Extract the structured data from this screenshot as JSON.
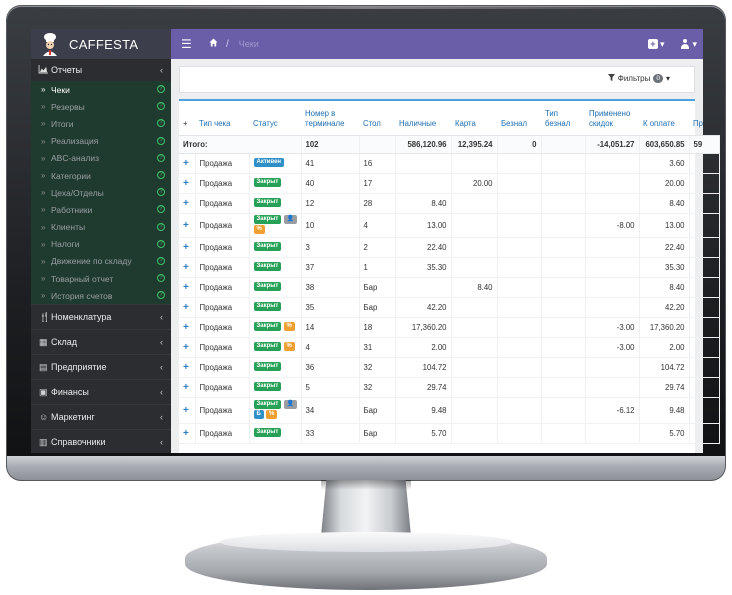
{
  "app": {
    "brand": "CAFFESTA",
    "breadcrumb_current": "Чеки"
  },
  "filters": {
    "label": "Фильтры",
    "count": "0"
  },
  "sidebar": {
    "section": "Отчеты",
    "items": [
      {
        "label": "Чеки",
        "active": true
      },
      {
        "label": "Резервы"
      },
      {
        "label": "Итоги"
      },
      {
        "label": "Реализация"
      },
      {
        "label": "ABC-анализ"
      },
      {
        "label": "Категории"
      },
      {
        "label": "Цеха/Отделы"
      },
      {
        "label": "Работники"
      },
      {
        "label": "Клиенты"
      },
      {
        "label": "Налоги"
      },
      {
        "label": "Движение по складу"
      },
      {
        "label": "Товарный отчет"
      },
      {
        "label": "История счетов"
      }
    ],
    "groups": [
      {
        "label": "Номенклатура"
      },
      {
        "label": "Склад"
      },
      {
        "label": "Предприятие"
      },
      {
        "label": "Финансы"
      },
      {
        "label": "Маркетинг"
      },
      {
        "label": "Справочники"
      }
    ]
  },
  "table": {
    "headers": [
      "+",
      "Тип чека",
      "Статус",
      "Номер в терминале",
      "Стол",
      "Наличные",
      "Карта",
      "Безнал",
      "Тип безнал",
      "Применено скидок",
      "К оплате",
      "Пр"
    ],
    "total": {
      "label": "Итого:",
      "number": "102",
      "cash": "586,120.96",
      "card": "12,395.24",
      "noncash": "0",
      "discount": "-14,051.27",
      "topay": "603,650.85",
      "extra": "59"
    },
    "status_labels": {
      "active": "Активен",
      "closed": "Закрыт",
      "pct": "%",
      "b": "Б"
    },
    "rows": [
      {
        "type": "Продажа",
        "status": "active",
        "num": "41",
        "table": "16",
        "cash": "",
        "card": "",
        "discount": "",
        "topay": "3.60"
      },
      {
        "type": "Продажа",
        "status": "closed",
        "num": "40",
        "table": "17",
        "cash": "",
        "card": "20.00",
        "discount": "",
        "topay": "20.00"
      },
      {
        "type": "Продажа",
        "status": "closed",
        "num": "12",
        "table": "28",
        "cash": "8.40",
        "card": "",
        "discount": "",
        "topay": "8.40"
      },
      {
        "type": "Продажа",
        "status": "closed-user-pct",
        "num": "10",
        "table": "4",
        "cash": "13.00",
        "card": "",
        "discount": "-8.00",
        "topay": "13.00"
      },
      {
        "type": "Продажа",
        "status": "closed",
        "num": "3",
        "table": "2",
        "cash": "22.40",
        "card": "",
        "discount": "",
        "topay": "22.40"
      },
      {
        "type": "Продажа",
        "status": "closed",
        "num": "37",
        "table": "1",
        "cash": "35.30",
        "card": "",
        "discount": "",
        "topay": "35.30"
      },
      {
        "type": "Продажа",
        "status": "closed",
        "num": "38",
        "table": "Бар",
        "cash": "",
        "card": "8.40",
        "discount": "",
        "topay": "8.40"
      },
      {
        "type": "Продажа",
        "status": "closed",
        "num": "35",
        "table": "Бар",
        "cash": "42.20",
        "card": "",
        "discount": "",
        "topay": "42.20"
      },
      {
        "type": "Продажа",
        "status": "closed-pct",
        "num": "14",
        "table": "18",
        "cash": "17,360.20",
        "card": "",
        "discount": "-3.00",
        "topay": "17,360.20"
      },
      {
        "type": "Продажа",
        "status": "closed-pct",
        "num": "4",
        "table": "31",
        "cash": "2.00",
        "card": "",
        "discount": "-3.00",
        "topay": "2.00"
      },
      {
        "type": "Продажа",
        "status": "closed",
        "num": "36",
        "table": "32",
        "cash": "104.72",
        "card": "",
        "discount": "",
        "topay": "104.72"
      },
      {
        "type": "Продажа",
        "status": "closed",
        "num": "5",
        "table": "32",
        "cash": "29.74",
        "card": "",
        "discount": "",
        "topay": "29.74"
      },
      {
        "type": "Продажа",
        "status": "closed-user-b-pct",
        "num": "34",
        "table": "Бар",
        "cash": "9.48",
        "card": "",
        "discount": "-6.12",
        "topay": "9.48"
      },
      {
        "type": "Продажа",
        "status": "closed",
        "num": "33",
        "table": "Бар",
        "cash": "5.70",
        "card": "",
        "discount": "",
        "topay": "5.70"
      }
    ]
  }
}
